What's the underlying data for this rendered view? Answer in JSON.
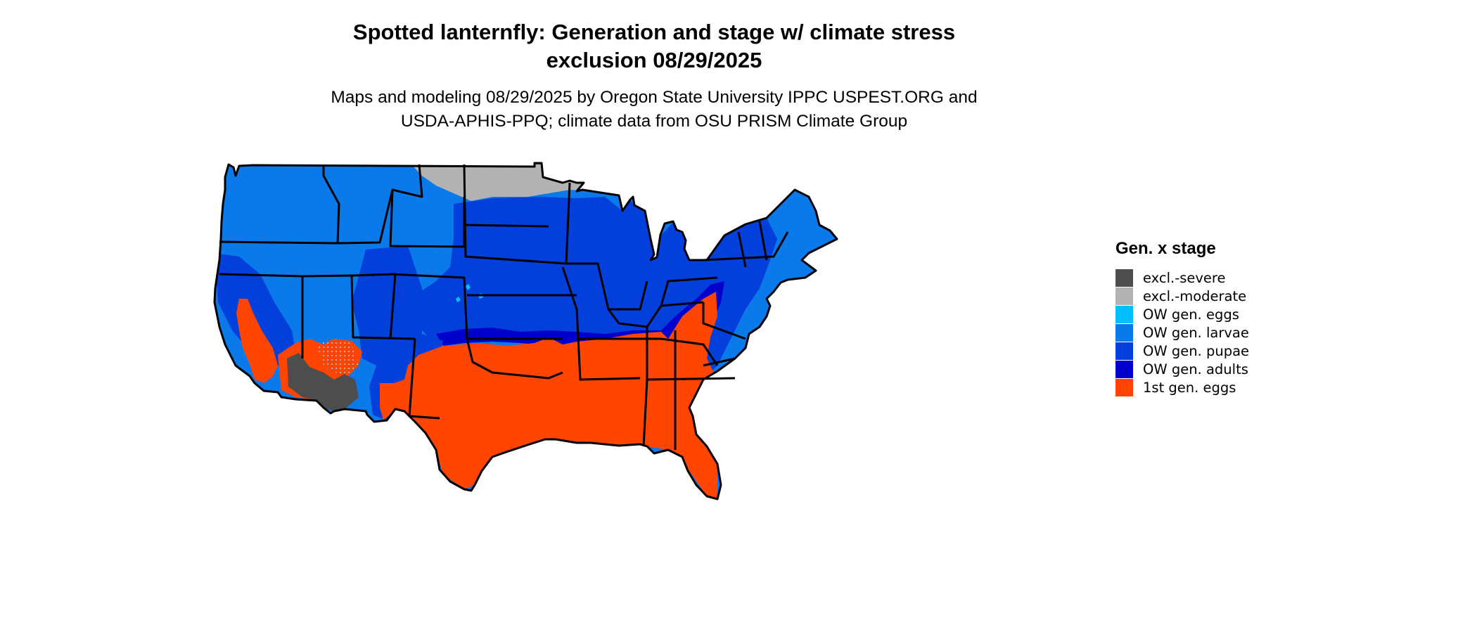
{
  "title_line1": "Spotted lanternfly: Generation and stage w/ climate stress",
  "title_line2": "exclusion 08/29/2025",
  "subtitle_line1": "Maps and modeling 08/29/2025 by Oregon State University IPPC USPEST.ORG and",
  "subtitle_line2": "USDA-APHIS-PPQ; climate data from OSU PRISM Climate Group",
  "legend": {
    "title": "Gen. x stage",
    "items": [
      {
        "label": "excl.-severe",
        "color": "#4d4d4d"
      },
      {
        "label": "excl.-moderate",
        "color": "#b3b3b3"
      },
      {
        "label": "OW gen. eggs",
        "color": "#00bfff"
      },
      {
        "label": "OW gen. larvae",
        "color": "#0a7aeb"
      },
      {
        "label": "OW gen. pupae",
        "color": "#0340db"
      },
      {
        "label": "OW gen. adults",
        "color": "#0000cd"
      },
      {
        "label": "1st gen. eggs",
        "color": "#ff4500"
      }
    ]
  }
}
